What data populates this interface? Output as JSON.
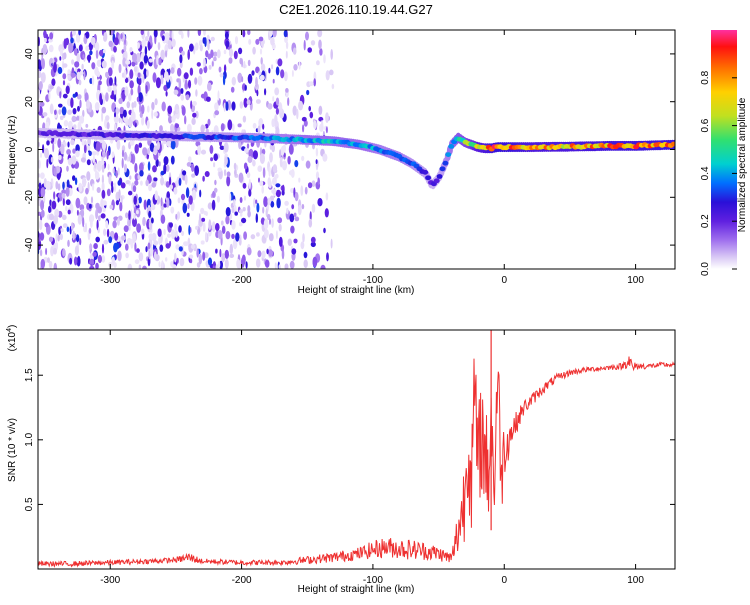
{
  "title": "C2E1.2026.110.19.44.G27",
  "colors": {
    "snr_line": "#ee3030",
    "axis": "#000000",
    "background": "#ffffff",
    "colormap": [
      "#ffffff",
      "#d9c8f5",
      "#a070ee",
      "#6020e0",
      "#2a10d8",
      "#0070ff",
      "#00d0d0",
      "#30e070",
      "#c0e020",
      "#ffd000",
      "#ff7000",
      "#ff1010",
      "#ff30a0"
    ]
  },
  "chart_data": [
    {
      "id": "spectrogram",
      "type": "heatmap",
      "title": "C2E1.2026.110.19.44.G27",
      "xlabel": "Height of straight line (km)",
      "ylabel": "Frequency (Hz)",
      "xlim": [
        -355,
        130
      ],
      "ylim": [
        -50,
        50
      ],
      "xticks": [
        -300,
        -200,
        -100,
        0,
        100
      ],
      "xticklabels": [
        "-300",
        "-200",
        "-100",
        "0",
        "100"
      ],
      "yticks": [
        -40,
        -20,
        0,
        20,
        40
      ],
      "yticklabels": [
        "-40",
        "-20",
        "0",
        "20",
        "40"
      ],
      "noise_region_x": [
        -355,
        -140
      ],
      "signal_ridge": {
        "x": [
          -355,
          -300,
          -250,
          -200,
          -170,
          -150,
          -130,
          -110,
          -95,
          -80,
          -70,
          -60,
          -55,
          -50,
          -45,
          -40,
          -35,
          -30,
          -25,
          -20,
          -15,
          -10,
          -5,
          0,
          20,
          50,
          80,
          100,
          130
        ],
        "freq": [
          7,
          6,
          5.5,
          5,
          4.5,
          4,
          3.5,
          2,
          0,
          -3,
          -6,
          -10,
          -15,
          -12,
          -6,
          2,
          5,
          3,
          2,
          1,
          0.5,
          0.5,
          1,
          1,
          1,
          1.2,
          1.5,
          1.5,
          2
        ],
        "amplitude": [
          0.25,
          0.3,
          0.35,
          0.4,
          0.45,
          0.5,
          0.5,
          0.5,
          0.45,
          0.45,
          0.4,
          0.35,
          0.3,
          0.3,
          0.4,
          0.5,
          0.55,
          0.6,
          0.65,
          0.75,
          0.8,
          0.85,
          0.9,
          0.9,
          0.8,
          0.8,
          0.85,
          0.85,
          0.85
        ]
      },
      "colorbar": {
        "label": "Normalized spectral amplitude",
        "range": [
          0,
          1
        ],
        "ticks": [
          0.0,
          0.2,
          0.4,
          0.6,
          0.8
        ],
        "ticklabels": [
          "0.0",
          "0.2",
          "0.4",
          "0.6",
          "0.8"
        ]
      }
    },
    {
      "id": "snr",
      "type": "line",
      "xlabel": "Height of straight line (km)",
      "ylabel": "SNR (10 * v/v)",
      "yscale_label": "(x10",
      "yscale_exp": "4",
      "yscale_close": ")",
      "xlim": [
        -355,
        130
      ],
      "ylim": [
        0,
        1.85
      ],
      "xticks": [
        -300,
        -200,
        -100,
        0,
        100
      ],
      "xticklabels": [
        "-300",
        "-200",
        "-100",
        "0",
        "100"
      ],
      "yticks": [
        0.5,
        1.0,
        1.5
      ],
      "yticklabels": [
        "0.5",
        "1.0",
        "1.5"
      ],
      "series": [
        {
          "name": "SNR",
          "x": [
            -355,
            -330,
            -300,
            -270,
            -250,
            -240,
            -230,
            -200,
            -170,
            -150,
            -130,
            -110,
            -100,
            -90,
            -80,
            -70,
            -60,
            -50,
            -45,
            -40,
            -35,
            -30,
            -28,
            -25,
            -22,
            -20,
            -18,
            -15,
            -12,
            -10,
            -8,
            -5,
            -2,
            0,
            5,
            10,
            15,
            20,
            30,
            40,
            50,
            60,
            70,
            80,
            90,
            95,
            98,
            100,
            110,
            120,
            130
          ],
          "y": [
            0.04,
            0.04,
            0.05,
            0.06,
            0.07,
            0.09,
            0.06,
            0.05,
            0.05,
            0.07,
            0.09,
            0.12,
            0.15,
            0.17,
            0.16,
            0.15,
            0.14,
            0.12,
            0.1,
            0.08,
            0.3,
            0.55,
            1.0,
            0.7,
            1.4,
            0.65,
            1.1,
            0.9,
            0.75,
            1.25,
            0.6,
            1.5,
            0.7,
            0.95,
            1.05,
            1.15,
            1.25,
            1.3,
            1.4,
            1.48,
            1.52,
            1.54,
            1.55,
            1.56,
            1.57,
            1.62,
            1.55,
            1.57,
            1.57,
            1.58,
            1.58
          ],
          "noise": [
            0.02,
            0.02,
            0.02,
            0.02,
            0.02,
            0.04,
            0.02,
            0.02,
            0.02,
            0.03,
            0.04,
            0.05,
            0.07,
            0.08,
            0.08,
            0.08,
            0.07,
            0.06,
            0.05,
            0.05,
            0.2,
            0.35,
            0.45,
            0.45,
            0.5,
            0.45,
            0.5,
            0.4,
            0.4,
            0.5,
            0.4,
            0.35,
            0.3,
            0.25,
            0.12,
            0.08,
            0.06,
            0.05,
            0.04,
            0.03,
            0.025,
            0.02,
            0.02,
            0.02,
            0.025,
            0.06,
            0.05,
            0.03,
            0.02,
            0.02,
            0.02
          ]
        }
      ]
    }
  ]
}
